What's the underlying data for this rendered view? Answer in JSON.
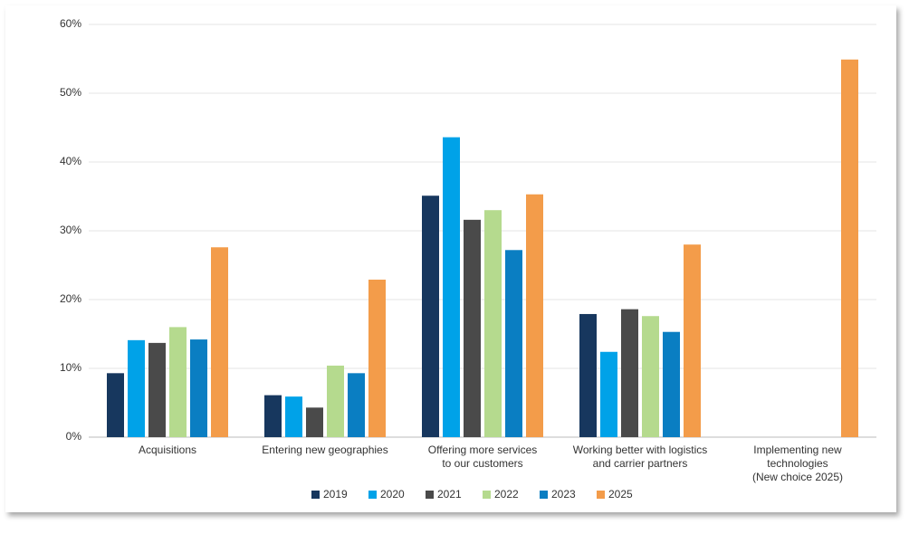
{
  "chart_data": {
    "type": "bar",
    "categories": [
      [
        "Acquisitions"
      ],
      [
        "Entering new geographies"
      ],
      [
        "Offering more services",
        "to our customers"
      ],
      [
        "Working better with logistics",
        "and carrier partners"
      ],
      [
        "Implementing new",
        "technologies",
        "(New choice 2025)"
      ]
    ],
    "series": [
      {
        "name": "2019",
        "color": "#17375e",
        "values": [
          9.3,
          6.1,
          35.1,
          17.9,
          null
        ]
      },
      {
        "name": "2020",
        "color": "#00a2e8",
        "values": [
          14.1,
          5.9,
          43.6,
          12.4,
          null
        ]
      },
      {
        "name": "2021",
        "color": "#4a4a4a",
        "values": [
          13.7,
          4.3,
          31.6,
          18.6,
          null
        ]
      },
      {
        "name": "2022",
        "color": "#b5da8e",
        "values": [
          16.0,
          10.4,
          33.0,
          17.6,
          null
        ]
      },
      {
        "name": "2023",
        "color": "#0a7ec2",
        "values": [
          14.2,
          9.3,
          27.2,
          15.3,
          null
        ]
      },
      {
        "name": "2025",
        "color": "#f39c4a",
        "values": [
          27.6,
          22.9,
          35.3,
          28.0,
          54.9
        ]
      }
    ],
    "ylim": [
      0,
      60
    ],
    "yticks": [
      {
        "value": 0,
        "label": "0%"
      },
      {
        "value": 10,
        "label": "10%"
      },
      {
        "value": 20,
        "label": "20%"
      },
      {
        "value": 30,
        "label": "30%"
      },
      {
        "value": 40,
        "label": "40%"
      },
      {
        "value": 50,
        "label": "50%"
      },
      {
        "value": 60,
        "label": "60%"
      }
    ],
    "grid": true,
    "legend": "bottom"
  }
}
